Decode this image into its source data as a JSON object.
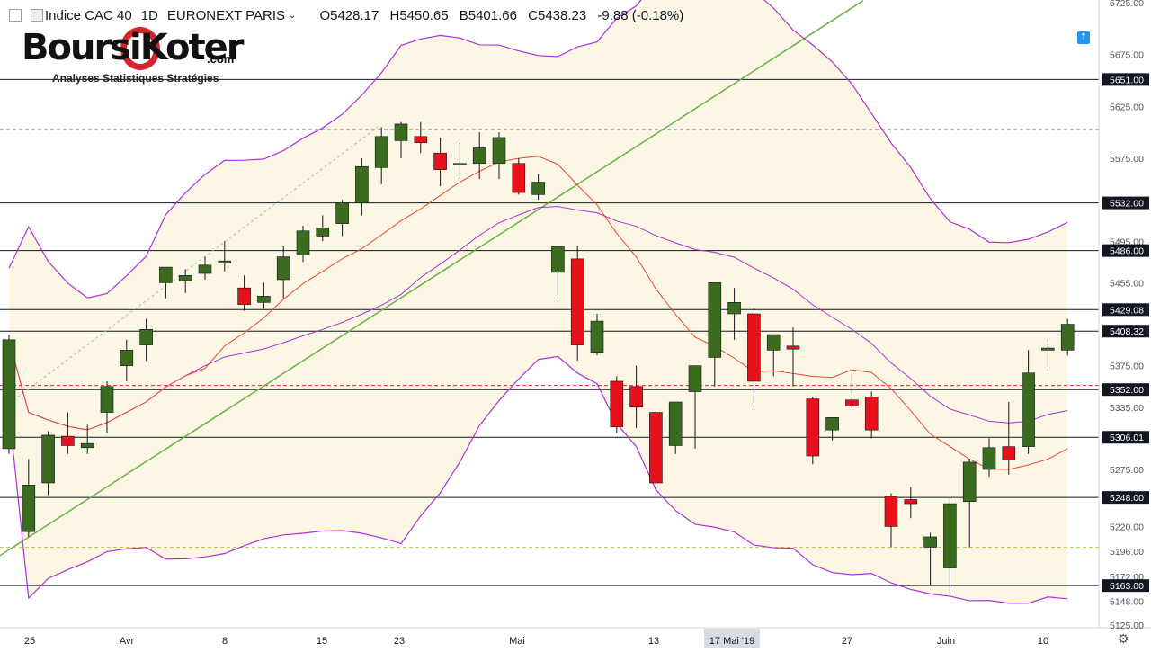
{
  "header": {
    "symbol": "Indice CAC 40",
    "interval": "1D",
    "exchange": "EURONEXT PARIS",
    "open": "O5428.17",
    "high": "H5450.65",
    "low": "B5401.66",
    "close": "C5438.23",
    "change": "-9.88 (-0.18%)"
  },
  "logo": {
    "brand": "BoursiKoter",
    "suffix": ".com",
    "tagline": "Analyses Statistiques Stratégies"
  },
  "chart_data": {
    "type": "candlestick",
    "y_range": [
      5125,
      5725
    ],
    "y_ticks": [
      "5725.00",
      "5675.00",
      "5625.00",
      "5575.00",
      "5495.00",
      "5455.00",
      "5375.00",
      "5335.00",
      "5275.00",
      "5220.00",
      "5196.00",
      "5172.00",
      "5148.00",
      "5125.00"
    ],
    "price_levels": [
      "5651.00",
      "5532.00",
      "5486.00",
      "5429.08",
      "5408.32",
      "5352.00",
      "5306.01",
      "5248.00",
      "5163.00"
    ],
    "x_labels": [
      "25",
      "Avr",
      "8",
      "15",
      "23",
      "Mai",
      "13",
      "17 Mai '19",
      "27",
      "Juin",
      "10"
    ],
    "candles": [
      {
        "o": 5295,
        "h": 5405,
        "l": 5290,
        "c": 5400
      },
      {
        "o": 5215,
        "h": 5285,
        "l": 5210,
        "c": 5260
      },
      {
        "o": 5262,
        "h": 5312,
        "l": 5250,
        "c": 5308
      },
      {
        "o": 5307,
        "h": 5330,
        "l": 5290,
        "c": 5298
      },
      {
        "o": 5296,
        "h": 5318,
        "l": 5290,
        "c": 5300
      },
      {
        "o": 5330,
        "h": 5360,
        "l": 5310,
        "c": 5355
      },
      {
        "o": 5375,
        "h": 5400,
        "l": 5360,
        "c": 5390
      },
      {
        "o": 5395,
        "h": 5420,
        "l": 5380,
        "c": 5410
      },
      {
        "o": 5455,
        "h": 5470,
        "l": 5440,
        "c": 5470
      },
      {
        "o": 5457,
        "h": 5468,
        "l": 5445,
        "c": 5462
      },
      {
        "o": 5464,
        "h": 5480,
        "l": 5458,
        "c": 5472
      },
      {
        "o": 5474,
        "h": 5495,
        "l": 5466,
        "c": 5476
      },
      {
        "o": 5450,
        "h": 5462,
        "l": 5428,
        "c": 5434
      },
      {
        "o": 5436,
        "h": 5455,
        "l": 5430,
        "c": 5442
      },
      {
        "o": 5458,
        "h": 5490,
        "l": 5440,
        "c": 5480
      },
      {
        "o": 5482,
        "h": 5510,
        "l": 5475,
        "c": 5505
      },
      {
        "o": 5500,
        "h": 5520,
        "l": 5495,
        "c": 5508
      },
      {
        "o": 5512,
        "h": 5535,
        "l": 5500,
        "c": 5532
      },
      {
        "o": 5532,
        "h": 5575,
        "l": 5520,
        "c": 5567
      },
      {
        "o": 5566,
        "h": 5605,
        "l": 5550,
        "c": 5596
      },
      {
        "o": 5592,
        "h": 5610,
        "l": 5575,
        "c": 5608
      },
      {
        "o": 5596,
        "h": 5610,
        "l": 5580,
        "c": 5590
      },
      {
        "o": 5580,
        "h": 5595,
        "l": 5548,
        "c": 5564
      },
      {
        "o": 5570,
        "h": 5590,
        "l": 5555,
        "c": 5570
      },
      {
        "o": 5570,
        "h": 5600,
        "l": 5555,
        "c": 5585
      },
      {
        "o": 5570,
        "h": 5600,
        "l": 5555,
        "c": 5595
      },
      {
        "o": 5570,
        "h": 5575,
        "l": 5540,
        "c": 5542
      },
      {
        "o": 5540,
        "h": 5560,
        "l": 5535,
        "c": 5552
      },
      {
        "o": 5465,
        "h": 5485,
        "l": 5440,
        "c": 5490
      },
      {
        "o": 5478,
        "h": 5490,
        "l": 5380,
        "c": 5395
      },
      {
        "o": 5388,
        "h": 5425,
        "l": 5385,
        "c": 5418
      },
      {
        "o": 5360,
        "h": 5365,
        "l": 5310,
        "c": 5316
      },
      {
        "o": 5355,
        "h": 5375,
        "l": 5315,
        "c": 5335
      },
      {
        "o": 5330,
        "h": 5332,
        "l": 5250,
        "c": 5262
      },
      {
        "o": 5298,
        "h": 5340,
        "l": 5290,
        "c": 5340
      },
      {
        "o": 5350,
        "h": 5375,
        "l": 5295,
        "c": 5375
      },
      {
        "o": 5383,
        "h": 5455,
        "l": 5355,
        "c": 5455
      },
      {
        "o": 5425,
        "h": 5450,
        "l": 5400,
        "c": 5436
      },
      {
        "o": 5425,
        "h": 5430,
        "l": 5335,
        "c": 5360
      },
      {
        "o": 5390,
        "h": 5405,
        "l": 5365,
        "c": 5405
      },
      {
        "o": 5394,
        "h": 5412,
        "l": 5355,
        "c": 5391
      },
      {
        "o": 5343,
        "h": 5345,
        "l": 5280,
        "c": 5288
      },
      {
        "o": 5313,
        "h": 5322,
        "l": 5303,
        "c": 5325
      },
      {
        "o": 5342,
        "h": 5368,
        "l": 5334,
        "c": 5336
      },
      {
        "o": 5345,
        "h": 5350,
        "l": 5305,
        "c": 5313
      },
      {
        "o": 5249,
        "h": 5252,
        "l": 5200,
        "c": 5220
      },
      {
        "o": 5246,
        "h": 5258,
        "l": 5228,
        "c": 5242
      },
      {
        "o": 5200,
        "h": 5214,
        "l": 5163,
        "c": 5210
      },
      {
        "o": 5180,
        "h": 5248,
        "l": 5155,
        "c": 5242
      },
      {
        "o": 5244,
        "h": 5285,
        "l": 5200,
        "c": 5282
      },
      {
        "o": 5275,
        "h": 5305,
        "l": 5268,
        "c": 5296
      },
      {
        "o": 5297,
        "h": 5340,
        "l": 5270,
        "c": 5284
      },
      {
        "o": 5297,
        "h": 5390,
        "l": 5290,
        "c": 5368
      },
      {
        "o": 5390,
        "h": 5400,
        "l": 5370,
        "c": 5392
      },
      {
        "o": 5390,
        "h": 5420,
        "l": 5385,
        "c": 5415
      }
    ],
    "colors": {
      "up": "#3a6b1f",
      "down": "#e8101a",
      "bollinger": "#b030d8",
      "ma": "#e8473a",
      "trend": "#6ab04c",
      "band_fill": "#fbf7e4"
    }
  }
}
